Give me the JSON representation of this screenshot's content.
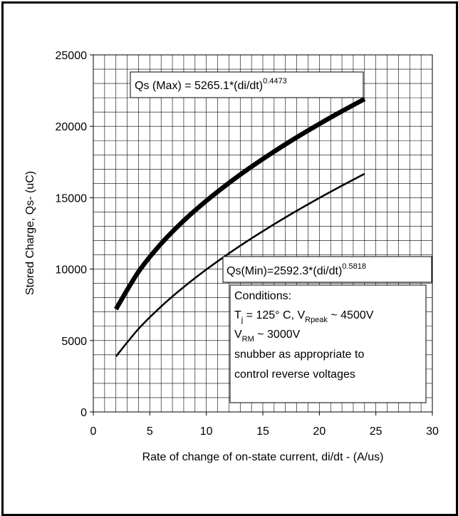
{
  "chart_data": {
    "type": "line",
    "xlabel": "Rate of change of on-state current, di/dt - (A/us)",
    "ylabel": "Stored Charge, Qs- (uC)",
    "xlim": [
      0,
      30
    ],
    "ylim": [
      0,
      25000
    ],
    "x_ticks": [
      0,
      5,
      10,
      15,
      20,
      25,
      30
    ],
    "y_ticks": [
      0,
      5000,
      10000,
      15000,
      20000,
      25000
    ],
    "grid": true,
    "series": [
      {
        "key": "max",
        "color": "#000000",
        "x": [
          2,
          4,
          6,
          8,
          10,
          12,
          14,
          16,
          18,
          20,
          22,
          24
        ],
        "values": [
          7195,
          9814,
          11783,
          13390,
          14783,
          16031,
          17173,
          18234,
          19228,
          20165,
          21057,
          21910
        ]
      },
      {
        "key": "min",
        "color": "#000000",
        "x": [
          2,
          4,
          6,
          8,
          10,
          12,
          14,
          16,
          18,
          20,
          22,
          24
        ],
        "values": [
          3883,
          5817,
          7384,
          8746,
          9972,
          11100,
          12152,
          13143,
          14084,
          14982,
          15844,
          16673
        ]
      }
    ],
    "annotations": {
      "max_eq": {
        "text": "Qs (Max) = 5265.1*(di/dt)",
        "exp": "0.4473"
      },
      "min_eq": {
        "text": "Qs(Min)=2592.3*(di/dt)",
        "exp": "0.5818"
      },
      "conditions": {
        "title": "Conditions:",
        "line1": {
          "a": "T",
          "a_sub": "j",
          "b": " = 125° C, V",
          "b_sub": "Rpeak",
          "c": " ~ 4500V"
        },
        "line2": {
          "a": "V",
          "a_sub": "RM",
          "b": " ~ 3000V"
        },
        "line3": "snubber as appropriate to",
        "line4": "control reverse voltages"
      }
    }
  }
}
